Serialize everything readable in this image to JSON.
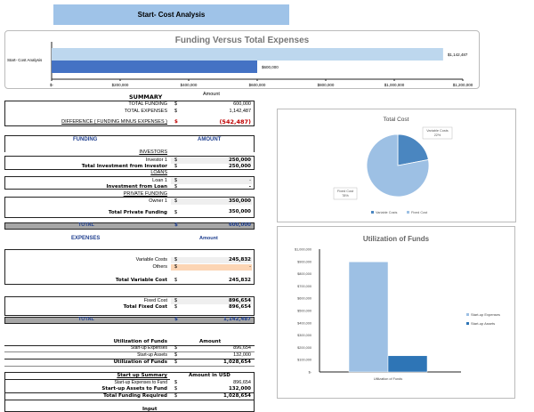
{
  "title": "Start- Cost Analysis",
  "summary": {
    "title": "SUMMARY",
    "amount_header": "Amount",
    "currency": "$",
    "total_funding_label": "TOTAL FUNDING",
    "total_funding": "600,000",
    "total_expenses_label": "TOTAL EXPENSES",
    "total_expenses": "1,142,487",
    "difference_label": "DIFFERENCE  ( FUNDING MINUS EXPENSES )",
    "difference": "(542,487)"
  },
  "funding": {
    "header": "FUNDING",
    "amount_header": "AMOUNT",
    "investors_label": "INVESTORS",
    "investor1_label": "Investor 1",
    "investor1": "250,000",
    "total_investor_label": "Total Investment from Investor",
    "total_investor": "250,000",
    "loans_label": "LOANS",
    "loan1_label": "Loan 1",
    "loan1": "-",
    "total_loan_label": "Investment from Loan",
    "total_loan": "-",
    "private_label": "PRIVATE FUNDING",
    "owner1_label": "Owner 1",
    "owner1": "350,000",
    "total_private_label": "Total Private Funding",
    "total_private": "350,000",
    "total_label": "TOTAL",
    "total": "600,000"
  },
  "expenses": {
    "header": "EXPENSES",
    "amount_header": "Amount",
    "variable_label": "Variable Costs",
    "variable": "245,832",
    "others_label": "Others",
    "others": "-",
    "total_variable_label": "Total Variable Cost",
    "total_variable": "245,832",
    "fixed_label": "Fixed Cost",
    "fixed": "896,654",
    "total_fixed_label": "Total Fixed Cost",
    "total_fixed": "896,654",
    "total_label": "TOTAL",
    "total": "1,142,487"
  },
  "utilization": {
    "header": "Utilization of Funds",
    "amount_header": "Amount",
    "expenses_label": "Start-up Expenses",
    "expenses": "896,654",
    "assets_label": "Start-up Assets",
    "assets": "132,000",
    "total_label": "Utilization of Funds",
    "total": "1,028,654"
  },
  "startup_summary": {
    "header": "Start up Summary",
    "amount_header": "Amount in USD",
    "expenses_label": "Start-up Expenses to Fund",
    "expenses": "896,654",
    "assets_label": "Start-up Assets to Fund",
    "assets": "132,000",
    "total_label": "Total Funding Required",
    "total": "1,028,654",
    "next_label": "Input"
  },
  "colors": {
    "light_blue": "#bdd7ee",
    "dark_blue": "#4472c4",
    "pie_dark": "#4a86c0",
    "pie_light": "#9dc0e4",
    "others_fill": "#fcd5b4",
    "negative": "#c00000",
    "header_blue": "#1f3f8f"
  },
  "chart_data": [
    {
      "type": "bar",
      "orientation": "horizontal",
      "title": "Funding Versus Total Expenses",
      "categories": [
        "Start- Cost Analysis"
      ],
      "series": [
        {
          "values": [
            1142487
          ],
          "label": "$1,142,487",
          "color": "#bdd7ee"
        },
        {
          "values": [
            600000
          ],
          "label": "$600,000",
          "color": "#4472c4"
        }
      ],
      "xlim": [
        0,
        1200000
      ],
      "ticks": [
        "$-",
        "$200,000",
        "$400,000",
        "$600,000",
        "$800,000",
        "$1,000,000",
        "$1,200,000"
      ]
    },
    {
      "type": "pie",
      "title": "Total Cost",
      "slices": [
        {
          "name": "Variable Costs",
          "value": 22,
          "label": "22%"
        },
        {
          "name": "Fixed Cost",
          "value": 78,
          "label": "78%"
        }
      ],
      "legend": "bottom"
    },
    {
      "type": "bar",
      "title": "Utilization of Funds",
      "categories": [
        "Utilization of Funds"
      ],
      "series": [
        {
          "name": "Start-up Expenses",
          "values": [
            896654
          ]
        },
        {
          "name": "Start-up Assets",
          "values": [
            132000
          ]
        }
      ],
      "ylim": [
        0,
        1000000
      ],
      "ticks": [
        "$-",
        "$100,000",
        "$200,000",
        "$300,000",
        "$400,000",
        "$500,000",
        "$600,000",
        "$700,000",
        "$800,000",
        "$900,000",
        "$1,000,000"
      ],
      "legend": "right"
    }
  ]
}
